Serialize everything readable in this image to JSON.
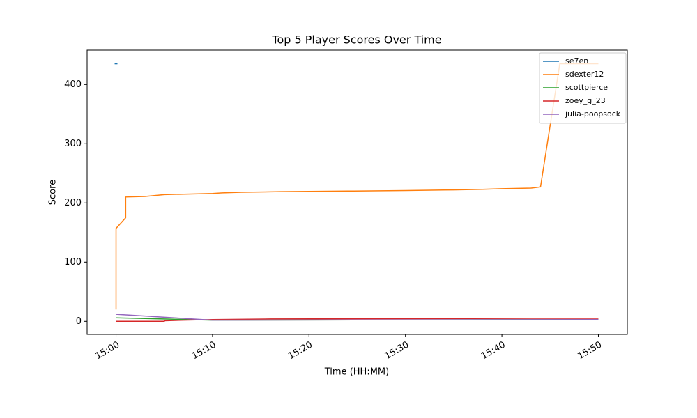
{
  "chart_data": {
    "type": "line",
    "title": "Top 5 Player Scores Over Time",
    "x_label": "Time (HH:MM)",
    "y_label": "Score",
    "xlim": [
      "14:57",
      "15:53"
    ],
    "xticks": [
      "15:00",
      "15:10",
      "15:20",
      "15:30",
      "15:40",
      "15:50"
    ],
    "ylim": [
      -22,
      458
    ],
    "yticks": [
      0,
      100,
      200,
      300,
      400
    ],
    "grid": false,
    "legend": "upper right",
    "series": [
      {
        "name": "se7en",
        "color": "#1f77b4",
        "x": [
          "15:00"
        ],
        "values": [
          435
        ]
      },
      {
        "name": "sdexter12",
        "color": "#ff7f0e",
        "x": [
          "15:00",
          "15:00",
          "15:01",
          "15:01",
          "15:03",
          "15:05",
          "15:10",
          "15:11",
          "15:13",
          "15:17",
          "15:24",
          "15:30",
          "15:35",
          "15:38",
          "15:40",
          "15:43",
          "15:44",
          "15:46",
          "15:50"
        ],
        "values": [
          20,
          157,
          175,
          210,
          211,
          214,
          216,
          217,
          218,
          219,
          220,
          221,
          222,
          223,
          224,
          225,
          227,
          435,
          435
        ]
      },
      {
        "name": "scottpierce",
        "color": "#2ca02c",
        "x": [
          "15:00",
          "15:10",
          "15:50"
        ],
        "values": [
          6,
          2,
          3
        ]
      },
      {
        "name": "zoey_g_23",
        "color": "#d62728",
        "x": [
          "15:00",
          "15:05",
          "15:05",
          "15:07",
          "15:10",
          "15:16",
          "15:43",
          "15:50"
        ],
        "values": [
          0,
          0,
          1,
          2,
          3,
          4,
          5,
          5
        ]
      },
      {
        "name": "julia-poopsock",
        "color": "#9467bd",
        "x": [
          "15:00",
          "15:10",
          "15:50"
        ],
        "values": [
          12,
          2,
          3
        ]
      }
    ]
  }
}
